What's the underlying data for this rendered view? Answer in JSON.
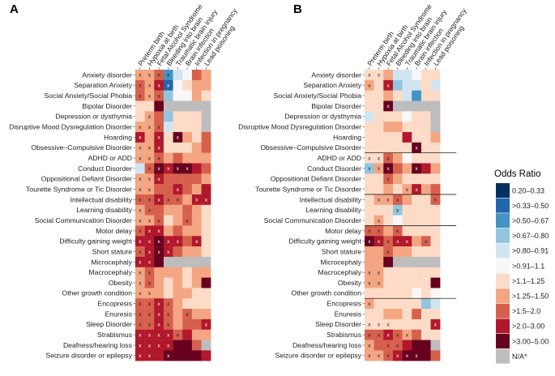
{
  "chart_data": {
    "type": "heatmap",
    "columns": [
      "Preterm birth",
      "Hypoxia at birth",
      "Fetal Alcohol Syndrome",
      "Bleeding into brain",
      "Traumatic brain injury",
      "Brain infection",
      "Infection in pregnancy",
      "Lead poisoning"
    ],
    "rows": [
      "Anxiety disorder",
      "Separation Anxiety",
      "Social Anxiety/Social Phobia",
      "Bipolar Disorder",
      "Depression or dysthymia",
      "Disruptive Mood Dysregulation Disorder",
      "Hoarding",
      "Obsessive–Compulsive Disorder",
      "ADHD or ADD",
      "Conduct Disorder",
      "Oppositional Defiant Disorder",
      "Tourette Syndrome or Tic Disorder",
      "Intellectual disability",
      "Learning disability",
      "Social Communication Disorder",
      "Motor delay",
      "Difficulty gaining weight",
      "Short stature",
      "Microcephaly",
      "Macrocephaly",
      "Obesity",
      "Other growth condition",
      "Encopresis",
      "Enuresis",
      "Sleep Disorder",
      "Strabismus",
      "Deafness/hearing loss",
      "Seizure disorder or epilepsy"
    ],
    "legend": {
      "title": "Odds Ratio",
      "labels": [
        "0.20–0.33",
        ">0.33–0.50",
        ">0.50–0.67",
        ">0.67–0.80",
        ">0.80–0.91",
        ">0.91–1.1",
        ">1.1–1.25",
        ">1.25–1.50",
        ">1.5–2.0",
        ">2.0–3.00",
        ">3.00–5.00",
        "N/A*"
      ],
      "colors": [
        "#053061",
        "#2166ac",
        "#4393c3",
        "#92c5de",
        "#d1e5f0",
        "#f7f7f7",
        "#fddbc7",
        "#f4a582",
        "#d6604d",
        "#b2182b",
        "#67001f",
        "#bdbdbd"
      ]
    },
    "significance_mark": "x",
    "panels": [
      {
        "label": "A",
        "separators_after_row": [],
        "bins": [
          [
            7,
            7,
            8,
            2,
            4,
            5,
            8,
            7
          ],
          [
            8,
            7,
            9,
            1,
            5,
            6,
            7,
            7
          ],
          [
            8,
            7,
            8,
            3,
            5,
            5,
            7,
            6
          ],
          [
            6,
            6,
            10,
            11,
            11,
            11,
            11,
            11
          ],
          [
            6,
            7,
            8,
            3,
            6,
            6,
            6,
            11
          ],
          [
            7,
            7,
            8,
            4,
            6,
            6,
            6,
            11
          ],
          [
            9,
            7,
            9,
            6,
            10,
            7,
            6,
            8
          ],
          [
            7,
            7,
            9,
            6,
            6,
            6,
            7,
            8
          ],
          [
            7,
            7,
            8,
            7,
            8,
            7,
            7,
            7
          ],
          [
            4,
            8,
            10,
            9,
            10,
            10,
            9,
            8
          ],
          [
            7,
            7,
            9,
            8,
            8,
            8,
            8,
            7
          ],
          [
            7,
            7,
            8,
            8,
            9,
            8,
            7,
            9
          ],
          [
            8,
            8,
            9,
            8,
            8,
            7,
            9,
            9
          ],
          [
            7,
            8,
            8,
            7,
            7,
            8,
            7,
            6
          ],
          [
            7,
            7,
            8,
            6,
            7,
            8,
            7,
            6
          ],
          [
            8,
            9,
            9,
            7,
            8,
            7,
            7,
            6
          ],
          [
            9,
            9,
            10,
            9,
            9,
            8,
            9,
            6
          ],
          [
            8,
            9,
            10,
            9,
            8,
            7,
            7,
            6
          ],
          [
            9,
            9,
            10,
            11,
            11,
            11,
            11,
            11
          ],
          [
            7,
            8,
            7,
            7,
            7,
            6,
            7,
            7
          ],
          [
            7,
            8,
            7,
            6,
            7,
            6,
            7,
            10
          ],
          [
            7,
            7,
            7,
            6,
            7,
            7,
            6,
            6
          ],
          [
            8,
            8,
            9,
            8,
            7,
            6,
            6,
            6
          ],
          [
            8,
            8,
            9,
            8,
            7,
            8,
            7,
            7
          ],
          [
            8,
            8,
            9,
            8,
            7,
            8,
            8,
            9
          ],
          [
            9,
            9,
            9,
            9,
            8,
            9,
            7,
            7
          ],
          [
            9,
            9,
            9,
            9,
            10,
            10,
            8,
            11
          ],
          [
            9,
            9,
            9,
            10,
            10,
            10,
            10,
            9
          ]
        ],
        "sig": [
          [
            1,
            1,
            1,
            1,
            0,
            0,
            0,
            0
          ],
          [
            1,
            1,
            1,
            1,
            0,
            0,
            0,
            0
          ],
          [
            1,
            1,
            1,
            0,
            0,
            0,
            0,
            0
          ],
          [
            0,
            0,
            0,
            0,
            0,
            0,
            0,
            0
          ],
          [
            0,
            1,
            0,
            0,
            0,
            0,
            0,
            0
          ],
          [
            1,
            1,
            1,
            0,
            0,
            0,
            0,
            0
          ],
          [
            1,
            0,
            1,
            0,
            1,
            0,
            0,
            0
          ],
          [
            1,
            1,
            1,
            0,
            0,
            0,
            0,
            0
          ],
          [
            1,
            1,
            1,
            0,
            0,
            0,
            0,
            0
          ],
          [
            0,
            1,
            1,
            1,
            1,
            1,
            0,
            0
          ],
          [
            1,
            1,
            1,
            0,
            0,
            0,
            0,
            0
          ],
          [
            1,
            1,
            0,
            0,
            1,
            0,
            0,
            0
          ],
          [
            1,
            1,
            1,
            1,
            1,
            0,
            1,
            1
          ],
          [
            1,
            1,
            0,
            0,
            0,
            0,
            0,
            0
          ],
          [
            1,
            1,
            1,
            0,
            0,
            1,
            0,
            0
          ],
          [
            1,
            1,
            1,
            0,
            0,
            0,
            0,
            0
          ],
          [
            1,
            1,
            1,
            1,
            1,
            0,
            1,
            0
          ],
          [
            1,
            1,
            1,
            1,
            0,
            0,
            0,
            0
          ],
          [
            1,
            1,
            0,
            0,
            0,
            0,
            0,
            0
          ],
          [
            1,
            1,
            0,
            0,
            0,
            0,
            0,
            0
          ],
          [
            1,
            1,
            0,
            0,
            0,
            0,
            0,
            0
          ],
          [
            1,
            1,
            0,
            0,
            0,
            0,
            0,
            0
          ],
          [
            1,
            1,
            1,
            1,
            0,
            0,
            0,
            0
          ],
          [
            1,
            1,
            1,
            1,
            0,
            1,
            0,
            0
          ],
          [
            1,
            1,
            1,
            1,
            0,
            0,
            0,
            1
          ],
          [
            1,
            1,
            1,
            1,
            1,
            0,
            0,
            0
          ],
          [
            1,
            1,
            1,
            1,
            0,
            0,
            0,
            0
          ],
          [
            1,
            1,
            0,
            1,
            0,
            0,
            0,
            0
          ]
        ]
      },
      {
        "label": "B",
        "separators_after_row": [
          7,
          11,
          14,
          21
        ],
        "bins": [
          [
            6,
            6,
            7,
            4,
            4,
            5,
            6,
            6
          ],
          [
            7,
            6,
            9,
            3,
            4,
            4,
            6,
            4
          ],
          [
            6,
            6,
            7,
            6,
            4,
            2,
            6,
            6
          ],
          [
            6,
            6,
            10,
            11,
            11,
            11,
            11,
            11
          ],
          [
            4,
            6,
            6,
            6,
            5,
            6,
            6,
            11
          ],
          [
            6,
            6,
            7,
            7,
            6,
            6,
            6,
            11
          ],
          [
            6,
            6,
            6,
            6,
            9,
            6,
            6,
            7
          ],
          [
            6,
            6,
            6,
            6,
            6,
            10,
            6,
            6
          ],
          [
            6,
            6,
            8,
            7,
            5,
            6,
            6,
            6
          ],
          [
            3,
            7,
            10,
            8,
            7,
            10,
            9,
            7
          ],
          [
            6,
            6,
            8,
            7,
            6,
            6,
            6,
            6
          ],
          [
            6,
            6,
            7,
            6,
            7,
            9,
            7,
            8
          ],
          [
            6,
            7,
            7,
            8,
            7,
            6,
            6,
            8
          ],
          [
            6,
            6,
            6,
            3,
            6,
            6,
            6,
            6
          ],
          [
            6,
            7,
            6,
            5,
            6,
            6,
            6,
            6
          ],
          [
            8,
            8,
            7,
            8,
            6,
            6,
            6,
            6
          ],
          [
            10,
            9,
            8,
            9,
            9,
            7,
            8,
            6
          ],
          [
            7,
            7,
            8,
            7,
            7,
            6,
            6,
            6
          ],
          [
            7,
            7,
            10,
            11,
            11,
            11,
            11,
            11
          ],
          [
            7,
            7,
            6,
            6,
            6,
            6,
            6,
            6
          ],
          [
            7,
            7,
            6,
            6,
            6,
            6,
            6,
            10
          ],
          [
            6,
            6,
            6,
            6,
            6,
            5,
            6,
            5
          ],
          [
            7,
            6,
            6,
            6,
            6,
            6,
            3,
            4
          ],
          [
            6,
            6,
            7,
            7,
            6,
            8,
            6,
            6
          ],
          [
            6,
            6,
            6,
            6,
            6,
            6,
            6,
            9
          ],
          [
            8,
            8,
            9,
            8,
            7,
            8,
            6,
            6
          ],
          [
            7,
            8,
            8,
            8,
            9,
            10,
            10,
            11
          ],
          [
            7,
            7,
            8,
            9,
            10,
            10,
            10,
            8
          ]
        ],
        "sig": [
          [
            1,
            1,
            0,
            0,
            0,
            0,
            0,
            0
          ],
          [
            1,
            0,
            1,
            0,
            0,
            0,
            0,
            0
          ],
          [
            0,
            0,
            0,
            0,
            0,
            0,
            0,
            0
          ],
          [
            0,
            0,
            1,
            0,
            0,
            0,
            0,
            0
          ],
          [
            0,
            0,
            0,
            0,
            0,
            0,
            0,
            0
          ],
          [
            0,
            0,
            0,
            0,
            0,
            0,
            0,
            0
          ],
          [
            0,
            0,
            0,
            0,
            0,
            0,
            0,
            0
          ],
          [
            0,
            0,
            0,
            0,
            0,
            1,
            0,
            0
          ],
          [
            1,
            1,
            1,
            0,
            0,
            0,
            0,
            0
          ],
          [
            1,
            1,
            1,
            0,
            0,
            1,
            0,
            0
          ],
          [
            0,
            0,
            1,
            0,
            0,
            0,
            0,
            0
          ],
          [
            0,
            0,
            0,
            0,
            1,
            1,
            0,
            0
          ],
          [
            0,
            1,
            1,
            1,
            0,
            0,
            0,
            1
          ],
          [
            0,
            0,
            0,
            1,
            0,
            0,
            0,
            0
          ],
          [
            0,
            1,
            0,
            0,
            0,
            0,
            0,
            0
          ],
          [
            1,
            1,
            0,
            1,
            0,
            0,
            0,
            0
          ],
          [
            1,
            1,
            1,
            1,
            1,
            0,
            1,
            0
          ],
          [
            0,
            0,
            1,
            0,
            0,
            0,
            0,
            0
          ],
          [
            0,
            0,
            0,
            0,
            0,
            0,
            0,
            0
          ],
          [
            1,
            1,
            0,
            0,
            0,
            0,
            0,
            0
          ],
          [
            1,
            1,
            0,
            0,
            0,
            0,
            0,
            0
          ],
          [
            0,
            0,
            0,
            0,
            0,
            0,
            0,
            0
          ],
          [
            1,
            0,
            0,
            0,
            0,
            0,
            0,
            0
          ],
          [
            0,
            0,
            0,
            0,
            0,
            0,
            0,
            0
          ],
          [
            1,
            1,
            1,
            0,
            0,
            0,
            0,
            1
          ],
          [
            1,
            1,
            1,
            1,
            1,
            0,
            0,
            0
          ],
          [
            1,
            0,
            1,
            1,
            0,
            0,
            0,
            0
          ],
          [
            1,
            1,
            1,
            1,
            1,
            1,
            0,
            0
          ]
        ]
      }
    ]
  }
}
